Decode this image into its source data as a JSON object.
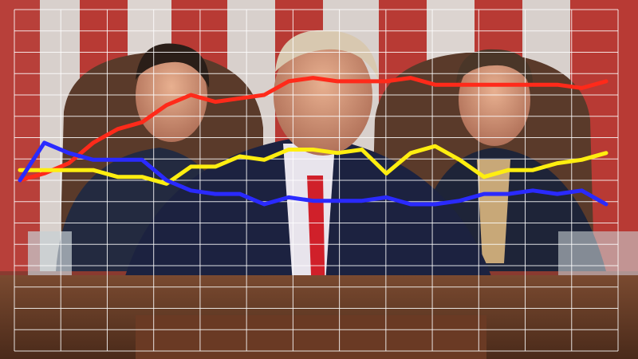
{
  "chart_data": {
    "type": "line",
    "title": "",
    "xlabel": "",
    "ylabel": "",
    "ylim": [
      0,
      100
    ],
    "grid": true,
    "legend": "none",
    "series": [
      {
        "color": "#ff2a1a",
        "values": [
          50,
          52,
          55,
          61,
          65,
          67,
          72,
          75,
          73,
          74,
          75,
          79,
          80,
          79,
          79,
          79,
          80,
          78,
          78,
          78,
          78,
          78,
          78,
          77,
          79
        ]
      },
      {
        "color": "#ffee10",
        "values": [
          53,
          53,
          53,
          53,
          51,
          51,
          49,
          54,
          54,
          57,
          56,
          59,
          59,
          58,
          59,
          52,
          58,
          60,
          56,
          51,
          53,
          53,
          55,
          56,
          58
        ]
      },
      {
        "color": "#2a2aff",
        "values": [
          50,
          61,
          58,
          56,
          56,
          56,
          50,
          47,
          46,
          46,
          43,
          45,
          44,
          44,
          44,
          45,
          43,
          43,
          44,
          46,
          46,
          47,
          46,
          47,
          43
        ]
      }
    ]
  }
}
